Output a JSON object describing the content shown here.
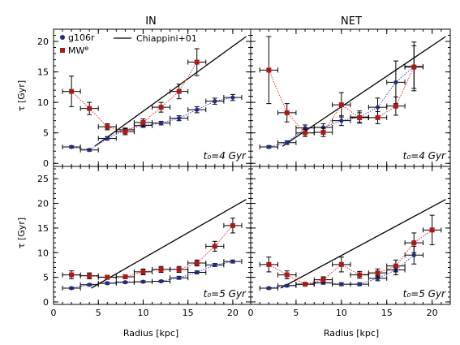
{
  "figure": {
    "col_titles": [
      "IN",
      "NET"
    ],
    "xlabel": "Radius [kpc]",
    "ylabel": "τ [Gyr]",
    "legend": [
      {
        "label": "g106r",
        "color": "#1f1f8f",
        "marker": "circle"
      },
      {
        "label": "MW",
        "sup": "e",
        "color": "#c01010",
        "marker": "square"
      },
      {
        "label": "Chiappini+01",
        "color": "#000000",
        "marker": "line"
      }
    ],
    "annotations": {
      "top": "t₀=4 Gyr",
      "bottom": "t₀=5 Gyr"
    },
    "colors": {
      "blue": "#1f2a8a",
      "red": "#b01818",
      "blue_line": "#3a3ad8",
      "red_line": "#e03030"
    }
  },
  "chart_data": [
    {
      "type": "scatter",
      "panel": "IN, t0=4 Gyr",
      "xlim": [
        0,
        22
      ],
      "ylim": [
        -0.5,
        22
      ],
      "xticks": [
        0,
        5,
        10,
        15,
        20
      ],
      "yticks": [
        0,
        5,
        10,
        15,
        20
      ],
      "series": [
        {
          "name": "g106r",
          "x": [
            2,
            4,
            6,
            8,
            10,
            12,
            14,
            16,
            18,
            20
          ],
          "y": [
            2.7,
            2.2,
            4.1,
            5.5,
            6.2,
            6.6,
            7.4,
            8.8,
            10.2,
            10.8
          ],
          "yerr": [
            0.2,
            0.2,
            0.3,
            0.3,
            0.3,
            0.3,
            0.4,
            0.5,
            0.5,
            0.5
          ]
        },
        {
          "name": "MW^e",
          "x": [
            2,
            4,
            6,
            8,
            10,
            12,
            14,
            16
          ],
          "y": [
            11.8,
            9.0,
            6.0,
            5.2,
            6.7,
            9.2,
            11.8,
            16.6
          ],
          "yerr": [
            2.5,
            1.0,
            0.5,
            0.5,
            0.6,
            0.8,
            1.2,
            2.2
          ]
        }
      ],
      "model": {
        "name": "Chiappini+01",
        "x": [
          4.6,
          21.5
        ],
        "y": [
          2.8,
          20.8
        ]
      }
    },
    {
      "type": "scatter",
      "panel": "NET, t0=4 Gyr",
      "xlim": [
        0,
        22
      ],
      "ylim": [
        -0.5,
        22
      ],
      "xticks": [
        0,
        5,
        10,
        15,
        20
      ],
      "yticks": [
        0,
        5,
        10,
        15,
        20
      ],
      "series": [
        {
          "name": "g106r",
          "x": [
            2,
            4,
            6,
            8,
            10,
            12,
            14,
            16,
            18
          ],
          "y": [
            2.7,
            3.4,
            5.8,
            5.9,
            7.0,
            7.6,
            9.2,
            13.3,
            15.9
          ],
          "yerr": [
            0.2,
            0.3,
            0.5,
            0.6,
            0.8,
            1.0,
            1.5,
            3.5,
            4.0
          ]
        },
        {
          "name": "MW^e",
          "x": [
            2,
            4,
            6,
            8,
            10,
            12,
            14,
            16,
            18
          ],
          "y": [
            15.3,
            8.3,
            5.0,
            5.1,
            9.6,
            7.5,
            7.5,
            9.4,
            15.8
          ],
          "yerr": [
            5.5,
            1.5,
            0.6,
            0.7,
            2.0,
            0.8,
            1.0,
            1.5,
            3.5
          ]
        }
      ],
      "model": {
        "name": "Chiappini+01",
        "x": [
          3.5,
          21.5
        ],
        "y": [
          2.8,
          20.8
        ]
      }
    },
    {
      "type": "scatter",
      "panel": "IN, t0=5 Gyr",
      "xlim": [
        0,
        22
      ],
      "ylim": [
        -0.5,
        27.5
      ],
      "xticks": [
        0,
        5,
        10,
        15,
        20
      ],
      "yticks": [
        0,
        5,
        10,
        15,
        20,
        25
      ],
      "series": [
        {
          "name": "g106r",
          "x": [
            2,
            4,
            6,
            8,
            10,
            12,
            14,
            16,
            18,
            20
          ],
          "y": [
            2.8,
            3.5,
            3.8,
            4.0,
            4.1,
            4.2,
            4.9,
            6.0,
            7.5,
            8.2
          ],
          "yerr": [
            0.2,
            0.2,
            0.2,
            0.2,
            0.2,
            0.2,
            0.3,
            0.3,
            0.3,
            0.3
          ]
        },
        {
          "name": "MW^e",
          "x": [
            2,
            4,
            6,
            8,
            10,
            12,
            14,
            16,
            18,
            20
          ],
          "y": [
            5.5,
            5.3,
            5.0,
            5.1,
            6.1,
            6.6,
            6.6,
            7.9,
            11.3,
            15.5
          ],
          "yerr": [
            0.8,
            0.6,
            0.4,
            0.4,
            0.6,
            0.6,
            0.6,
            0.6,
            1.0,
            1.5
          ]
        }
      ],
      "model": {
        "name": "Chiappini+01",
        "x": [
          4.2,
          21.5
        ],
        "y": [
          2.8,
          20.8
        ]
      }
    },
    {
      "type": "scatter",
      "panel": "NET, t0=5 Gyr",
      "xlim": [
        0,
        22
      ],
      "ylim": [
        -0.5,
        27.5
      ],
      "xticks": [
        0,
        5,
        10,
        15,
        20
      ],
      "yticks": [
        0,
        5,
        10,
        15,
        20,
        25
      ],
      "series": [
        {
          "name": "g106r",
          "x": [
            2,
            4,
            6,
            8,
            10,
            12,
            14,
            16,
            18
          ],
          "y": [
            2.8,
            3.3,
            3.6,
            3.9,
            3.6,
            3.6,
            4.8,
            6.5,
            9.5
          ],
          "yerr": [
            0.2,
            0.2,
            0.2,
            0.3,
            0.3,
            0.3,
            0.5,
            1.0,
            1.8
          ]
        },
        {
          "name": "MW^e",
          "x": [
            2,
            4,
            6,
            8,
            10,
            12,
            14,
            16,
            18,
            20
          ],
          "y": [
            7.6,
            5.5,
            3.6,
            4.5,
            7.6,
            5.5,
            5.9,
            7.3,
            12.0,
            14.6
          ],
          "yerr": [
            1.5,
            0.8,
            0.3,
            0.6,
            1.5,
            0.7,
            0.8,
            1.2,
            2.0,
            3.0
          ]
        }
      ],
      "model": {
        "name": "Chiappini+01",
        "x": [
          3.3,
          21.5
        ],
        "y": [
          2.8,
          20.8
        ]
      }
    }
  ]
}
